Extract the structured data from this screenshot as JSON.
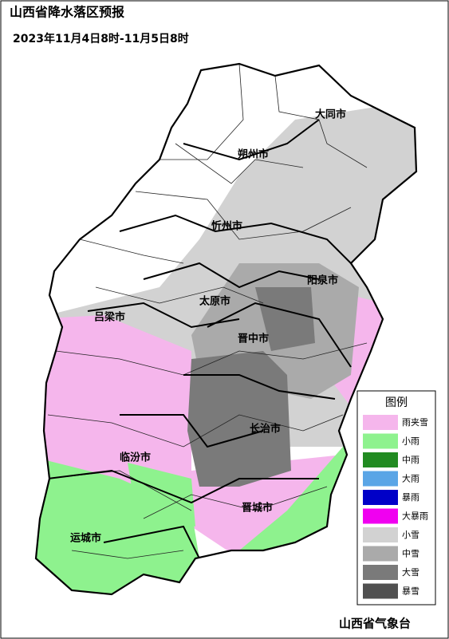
{
  "header": {
    "title": "山西省降水落区预报",
    "subtitle": "2023年11月4日8时-11月5日8时"
  },
  "map": {
    "labels": [
      "大同市",
      "朔州市",
      "忻州市",
      "阳泉市",
      "太原市",
      "吕梁市",
      "晋中市",
      "长治市",
      "临汾市",
      "晋城市",
      "运城市"
    ]
  },
  "legend": {
    "title": "图例",
    "items": [
      {
        "name": "雨夹雪",
        "color": "#f5b6ec"
      },
      {
        "name": "小雨",
        "color": "#8ef28e"
      },
      {
        "name": "中雨",
        "color": "#228b22"
      },
      {
        "name": "大雨",
        "color": "#5aa5e6"
      },
      {
        "name": "暴雨",
        "color": "#0000c8"
      },
      {
        "name": "大暴雨",
        "color": "#f000f0"
      },
      {
        "name": "小雪",
        "color": "#d2d2d2"
      },
      {
        "name": "中雪",
        "color": "#aaaaaa"
      },
      {
        "name": "大雪",
        "color": "#7a7a7a"
      },
      {
        "name": "暴雪",
        "color": "#505050"
      }
    ]
  },
  "footer": "山西省气象台"
}
